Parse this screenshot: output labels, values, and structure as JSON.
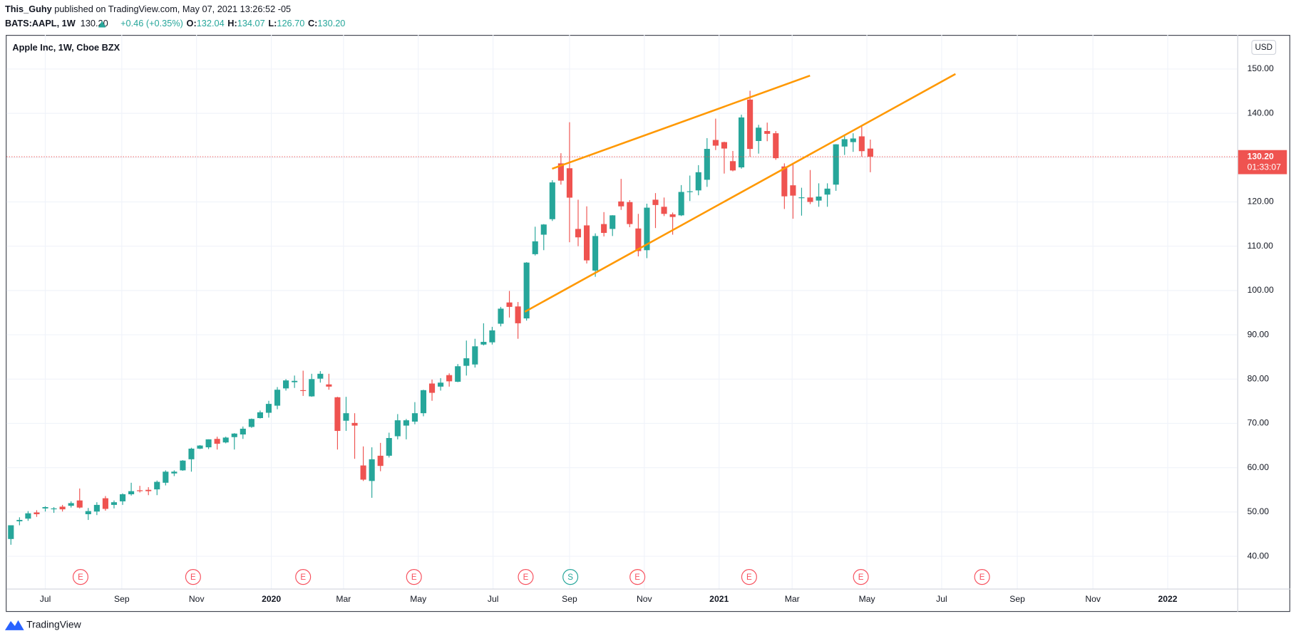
{
  "header": {
    "publisher": "This_Guhy",
    "published": "published on TradingView.com, May 07, 2021 13:26:52 -05",
    "symbol": "BATS:AAPL, 1W",
    "price": "130.20",
    "change": "+0.46 (+0.35%)",
    "ohlc": [
      {
        "label": "O:",
        "value": "132.04"
      },
      {
        "label": "H:",
        "value": "134.07"
      },
      {
        "label": "L:",
        "value": "126.70"
      },
      {
        "label": "C:",
        "value": "130.20"
      }
    ]
  },
  "chart_data": {
    "type": "candlestick",
    "title": "Apple Inc, 1W, Cboe BZX",
    "currency": "USD",
    "up_color": "#26a69a",
    "down_color": "#ef5350",
    "grid": true,
    "open": [
      43.9,
      47.9,
      48.5,
      49.9,
      50.8,
      50.7,
      51.2,
      51.4,
      52.6,
      49.5,
      50.1,
      53.1,
      51.6,
      52.4,
      54.0,
      54.9,
      55.0,
      55.1,
      56.6,
      58.7,
      59.4,
      61.9,
      64.3,
      64.6,
      66.5,
      65.7,
      66.9,
      67.5,
      69.2,
      71.2,
      72.4,
      74.0,
      77.9,
      79.3,
      77.5,
      76.1,
      80.1,
      78.8,
      75.9,
      70.6,
      70.1,
      60.5,
      57.0,
      62.7,
      62.7,
      67.1,
      69.5,
      70.4,
      72.3,
      79.0,
      78.3,
      80.9,
      79.4,
      83.0,
      83.3,
      87.8,
      88.3,
      92.5,
      97.3,
      96.4,
      93.7,
      108.2,
      112.6,
      116.1,
      128.7,
      127.6,
      113.9,
      114.7,
      104.5,
      115.0,
      113.9,
      120.1,
      119.96,
      114.0,
      109.1,
      120.5,
      118.9,
      117.2,
      116.97,
      122.3,
      122.6,
      125.0,
      133.99,
      133.5,
      129.2,
      127.8,
      143.1,
      133.75,
      136.0,
      135.5,
      128.0,
      123.75,
      120.9,
      121.0,
      120.3,
      121.65,
      123.9,
      132.5,
      133.5,
      134.8,
      132.04
    ],
    "high": [
      47.0,
      48.8,
      50.2,
      50.4,
      51.3,
      51.1,
      51.6,
      52.4,
      55.3,
      50.9,
      52.2,
      53.6,
      52.6,
      54.2,
      56.6,
      55.9,
      55.6,
      57.1,
      59.4,
      59.4,
      61.7,
      64.5,
      65.1,
      66.4,
      67.0,
      67.0,
      67.8,
      69.3,
      71.1,
      72.9,
      75.1,
      78.2,
      80.0,
      80.8,
      81.9,
      81.2,
      81.8,
      81.2,
      76.0,
      76.0,
      72.3,
      64.8,
      64.6,
      65.6,
      67.9,
      72.1,
      71.0,
      74.8,
      77.6,
      79.9,
      80.2,
      81.3,
      83.4,
      88.7,
      89.1,
      92.6,
      91.8,
      96.3,
      99.9,
      97.4,
      106.4,
      114.4,
      115.0,
      124.9,
      131.0,
      137.98,
      120.5,
      119.0,
      112.9,
      117.7,
      117.0,
      125.2,
      120.4,
      117.3,
      119.6,
      121.99,
      120.99,
      117.6,
      123.8,
      125.95,
      128.3,
      134.4,
      138.8,
      133.6,
      131.5,
      139.7,
      145.09,
      137.4,
      137.9,
      136.0,
      128.7,
      128.7,
      123.2,
      127.2,
      124.2,
      124.2,
      133.04,
      135.0,
      135.5,
      137.1,
      134.07
    ],
    "low": [
      42.6,
      47.0,
      48.0,
      48.9,
      50.1,
      49.8,
      50.1,
      51.0,
      50.8,
      48.2,
      49.3,
      50.3,
      50.8,
      51.6,
      53.7,
      54.4,
      53.8,
      53.8,
      56.0,
      58.1,
      59.3,
      59.1,
      64.2,
      64.2,
      64.1,
      65.5,
      64.1,
      66.5,
      69.0,
      71.1,
      71.3,
      73.2,
      77.4,
      78.0,
      76.2,
      76.0,
      79.2,
      77.6,
      64.1,
      68.3,
      62.0,
      57.0,
      53.2,
      59.2,
      62.3,
      66.4,
      66.4,
      69.8,
      71.6,
      75.1,
      77.4,
      78.3,
      79.3,
      80.8,
      82.6,
      87.6,
      87.8,
      91.9,
      93.9,
      89.1,
      93.2,
      107.9,
      109.1,
      115.7,
      123.9,
      110.9,
      110.0,
      106.1,
      103.1,
      112.2,
      112.3,
      118.2,
      114.3,
      107.7,
      107.3,
      114.1,
      116.8,
      112.6,
      116.8,
      120.2,
      121.5,
      123.4,
      131.7,
      126.4,
      126.9,
      127.5,
      130.2,
      130.9,
      133.7,
      129.5,
      118.4,
      116.2,
      116.9,
      119.5,
      118.9,
      118.9,
      122.5,
      130.6,
      131.3,
      130.2,
      126.7
    ],
    "close": [
      47.0,
      48.2,
      49.7,
      49.5,
      51.1,
      50.8,
      50.6,
      52.0,
      51.0,
      50.2,
      51.6,
      50.7,
      52.2,
      54.0,
      54.7,
      54.7,
      54.7,
      56.8,
      59.1,
      59.1,
      61.6,
      64.3,
      65.0,
      66.4,
      65.4,
      66.8,
      67.7,
      68.8,
      71.0,
      72.5,
      74.4,
      77.6,
      79.7,
      79.6,
      77.4,
      80.0,
      81.2,
      78.3,
      68.3,
      72.3,
      69.5,
      57.3,
      61.9,
      60.4,
      66.7,
      70.7,
      70.7,
      72.3,
      77.5,
      76.9,
      79.2,
      79.5,
      82.9,
      84.7,
      87.4,
      88.4,
      91.0,
      95.9,
      96.3,
      92.6,
      106.3,
      111.1,
      114.9,
      124.4,
      124.8,
      120.96,
      112.0,
      106.8,
      112.3,
      113.0,
      116.97,
      119.0,
      115.0,
      108.9,
      118.7,
      119.3,
      117.3,
      116.6,
      122.25,
      122.4,
      126.7,
      131.97,
      132.7,
      132.05,
      127.1,
      139.07,
      131.96,
      136.76,
      135.37,
      129.87,
      121.26,
      121.42,
      121.03,
      119.99,
      121.21,
      123.0,
      133.0,
      134.16,
      134.32,
      131.46,
      130.2
    ],
    "last_label": "130.20",
    "countdown": "01:33:07",
    "xlim": [
      -0.5,
      142.7
    ],
    "xticks": [
      {
        "value": 4.0,
        "label": "Jul"
      },
      {
        "value": 12.9,
        "label": "Sep"
      },
      {
        "value": 21.6,
        "label": "Nov"
      },
      {
        "value": 30.3,
        "label": "2020"
      },
      {
        "value": 38.7,
        "label": "Mar"
      },
      {
        "value": 47.4,
        "label": "May"
      },
      {
        "value": 56.1,
        "label": "Jul"
      },
      {
        "value": 65.0,
        "label": "Sep"
      },
      {
        "value": 73.7,
        "label": "Nov"
      },
      {
        "value": 82.4,
        "label": "2021"
      },
      {
        "value": 90.9,
        "label": "Mar"
      },
      {
        "value": 99.6,
        "label": "May"
      },
      {
        "value": 108.3,
        "label": "Jul"
      },
      {
        "value": 117.1,
        "label": "Sep"
      },
      {
        "value": 125.9,
        "label": "Nov"
      },
      {
        "value": 134.6,
        "label": "2022"
      }
    ],
    "ylim": [
      32.7,
      157.7
    ],
    "yticks": [
      {
        "value": 40,
        "label": "40.00"
      },
      {
        "value": 50,
        "label": "50.00"
      },
      {
        "value": 60,
        "label": "60.00"
      },
      {
        "value": 70,
        "label": "70.00"
      },
      {
        "value": 80,
        "label": "80.00"
      },
      {
        "value": 90,
        "label": "90.00"
      },
      {
        "value": 100,
        "label": "100.00"
      },
      {
        "value": 110,
        "label": "110.00"
      },
      {
        "value": 120,
        "label": "120.00"
      },
      {
        "value": 130,
        "label": "130.00"
      },
      {
        "value": 140,
        "label": "140.00"
      },
      {
        "value": 150,
        "label": "150.00"
      }
    ],
    "events": [
      {
        "label": "E",
        "x": 8.1
      },
      {
        "label": "E",
        "x": 21.2
      },
      {
        "label": "E",
        "x": 34.0
      },
      {
        "label": "E",
        "x": 46.9
      },
      {
        "label": "E",
        "x": 59.9
      },
      {
        "label": "S",
        "x": 65.1
      },
      {
        "label": "E",
        "x": 72.9
      },
      {
        "label": "E",
        "x": 85.9
      },
      {
        "label": "E",
        "x": 98.9
      },
      {
        "label": "E",
        "x": 113.0
      }
    ]
  },
  "footer": {
    "brand": "TradingView"
  }
}
